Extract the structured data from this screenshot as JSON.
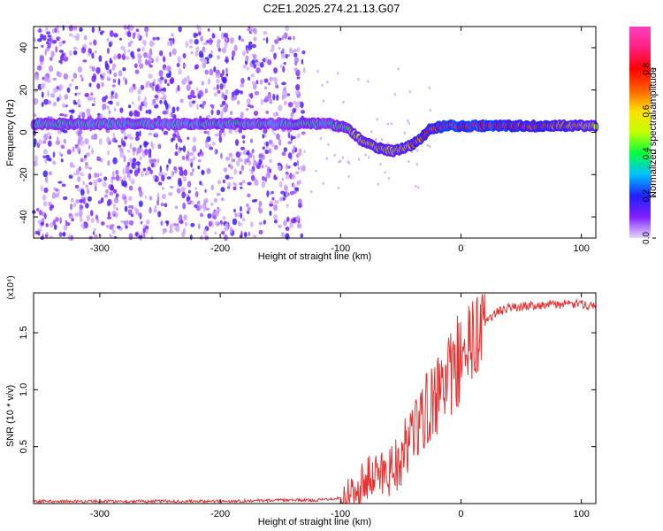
{
  "title": "C2E1.2025.274.21.13.G07",
  "chart_data": [
    {
      "type": "heatmap",
      "xlabel": "Height of straight line (km)",
      "ylabel": "Frequency (Hz)",
      "xlim": [
        -355,
        112
      ],
      "ylim": [
        -50,
        50
      ],
      "xticks": [
        -300,
        -200,
        -100,
        0,
        100
      ],
      "yticks": [
        -40,
        -20,
        0,
        20,
        40
      ],
      "colorbar": {
        "label": "Normalized spectral amplitude",
        "range": [
          0,
          1
        ],
        "ticks": [
          "0.0",
          "0.2",
          "0.4",
          "0.6",
          "0.8"
        ],
        "tick_values": [
          0.0,
          0.2,
          0.4,
          0.6,
          0.8
        ],
        "colors": [
          "#e8d8ff",
          "#8020ff",
          "#2020ff",
          "#00c0ff",
          "#00ff40",
          "#c0ff00",
          "#ffe000",
          "#ff6000",
          "#ff0000",
          "#ff2080",
          "#ff40c0"
        ]
      },
      "ridge": {
        "x": [
          -355,
          -300,
          -250,
          -200,
          -150,
          -130,
          -110,
          -95,
          -80,
          -65,
          -55,
          -45,
          -35,
          -25,
          -10,
          0,
          20,
          50,
          80,
          112
        ],
        "frequency": [
          4,
          4,
          4,
          4,
          4,
          4,
          4,
          2,
          -5,
          -8,
          -9,
          -7,
          -4,
          2,
          3,
          3,
          3,
          3,
          3,
          3
        ],
        "amplitude": [
          0.4,
          0.42,
          0.4,
          0.42,
          0.4,
          0.45,
          0.45,
          0.5,
          0.6,
          0.7,
          0.65,
          0.7,
          0.8,
          0.85,
          0.95,
          0.98,
          0.97,
          0.85,
          0.8,
          0.6
        ]
      },
      "noise_region_x": [
        -355,
        -130
      ]
    },
    {
      "type": "line",
      "xlabel": "Height of straight line (km)",
      "ylabel": "SNR (10 * v/v)",
      "scale_label": "(x10⁴)",
      "xlim": [
        -355,
        112
      ],
      "ylim": [
        0,
        1.85
      ],
      "xticks": [
        -300,
        -200,
        -100,
        0,
        100
      ],
      "yticks": [
        "0.5",
        "1.0",
        "1.5"
      ],
      "ytick_values": [
        0.5,
        1.0,
        1.5
      ],
      "color": "#e83030",
      "series": [
        {
          "name": "SNR",
          "x": [
            -355,
            -300,
            -200,
            -150,
            -120,
            -100,
            -90,
            -80,
            -70,
            -60,
            -50,
            -40,
            -30,
            -20,
            -10,
            0,
            10,
            20,
            30,
            40,
            60,
            80,
            100,
            112
          ],
          "values": [
            0.02,
            0.02,
            0.02,
            0.03,
            0.03,
            0.05,
            0.1,
            0.2,
            0.25,
            0.3,
            0.4,
            0.6,
            0.8,
            0.95,
            1.1,
            1.25,
            1.4,
            1.6,
            1.68,
            1.72,
            1.74,
            1.75,
            1.75,
            1.74
          ]
        }
      ]
    }
  ]
}
